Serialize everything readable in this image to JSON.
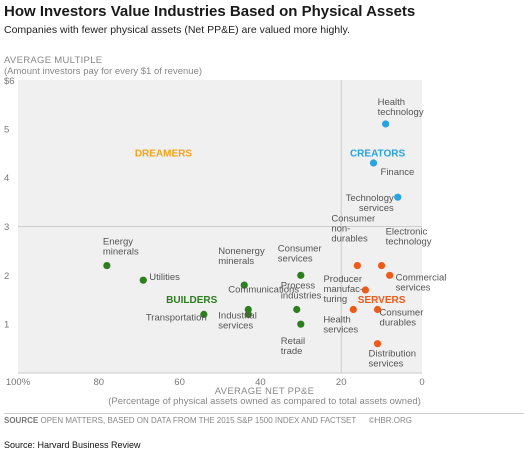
{
  "header": {
    "title": "How Investors Value Industries Based on Physical Assets",
    "subtitle": "Companies with fewer physical assets (Net PP&E) are valued more highly."
  },
  "axes": {
    "y_title": "AVERAGE MULTIPLE",
    "y_subtitle": "(Amount investors pay for every $1 of revenue)",
    "x_title": "AVERAGE NET PP&E",
    "x_subtitle": "(Percentage of physical assets owned as compared to total assets owned)"
  },
  "footer": {
    "source_label": "SOURCE",
    "source_text": "OPEN MATTERS, BASED ON DATA FROM THE 2015 S&P 1500 INDEX AND FACTSET",
    "credit": "©HBR.ORG",
    "bottom_source": "Source: Harvard Business Review"
  },
  "colors": {
    "dreamers": "#f5a21b",
    "creators": "#29a3e0",
    "builders": "#2e7d1f",
    "servers": "#ee5a1a",
    "dividers": "#cccccc",
    "background": "#f0f0f0"
  },
  "chart_data": {
    "type": "scatter",
    "x_ticks": [
      "100%",
      "80",
      "60",
      "40",
      "20",
      "0"
    ],
    "y_ticks": [
      "1",
      "2",
      "3",
      "4",
      "5",
      "$6"
    ],
    "xlim": [
      100,
      0
    ],
    "ylim": [
      0,
      6
    ],
    "x_reversed": true,
    "grid": false,
    "quadrant_dividers": {
      "x": 20,
      "y": 3
    },
    "quadrants": [
      {
        "name": "DREAMERS",
        "color": "#f5a21b",
        "x": 64,
        "y": 4.5
      },
      {
        "name": "CREATORS",
        "color": "#29a3e0",
        "x": 11,
        "y": 4.5
      },
      {
        "name": "BUILDERS",
        "color": "#2e7d1f",
        "x": 57,
        "y": 1.5
      },
      {
        "name": "SERVERS",
        "color": "#ee5a1a",
        "x": 10,
        "y": 1.5
      }
    ],
    "series": [
      {
        "name": "Creators",
        "color": "#29a3e0",
        "points": [
          {
            "label": "Health technology",
            "x": 9,
            "y": 5.1
          },
          {
            "label": "Finance",
            "x": 12,
            "y": 4.3
          },
          {
            "label": "Technology services",
            "x": 6,
            "y": 3.6
          }
        ]
      },
      {
        "name": "Builders",
        "color": "#2e7d1f",
        "points": [
          {
            "label": "Energy minerals",
            "x": 78,
            "y": 2.2
          },
          {
            "label": "Utilities",
            "x": 69,
            "y": 1.9
          },
          {
            "label": "Transportation",
            "x": 54,
            "y": 1.2
          },
          {
            "label": "Nonenergy minerals",
            "x": 44,
            "y": 1.8
          },
          {
            "label": "Communications",
            "x": 43,
            "y": 1.3
          },
          {
            "label": "Industrial services",
            "x": 43,
            "y": 1.2
          },
          {
            "label": "Consumer services",
            "x": 30,
            "y": 2.0
          },
          {
            "label": "Process industries",
            "x": 31,
            "y": 1.3
          },
          {
            "label": "Retail trade",
            "x": 30,
            "y": 1.0
          }
        ]
      },
      {
        "name": "Servers",
        "color": "#ee5a1a",
        "points": [
          {
            "label": "Consumer non-durables",
            "x": 16,
            "y": 2.2
          },
          {
            "label": "Electronic technology",
            "x": 10,
            "y": 2.2
          },
          {
            "label": "Commercial services",
            "x": 8,
            "y": 2.0
          },
          {
            "label": "Producer manufac-turing",
            "x": 14,
            "y": 1.7
          },
          {
            "label": "Health services",
            "x": 17,
            "y": 1.3
          },
          {
            "label": "Consumer durables",
            "x": 11,
            "y": 1.3
          },
          {
            "label": "Distribution services",
            "x": 11,
            "y": 0.6
          }
        ]
      }
    ]
  }
}
